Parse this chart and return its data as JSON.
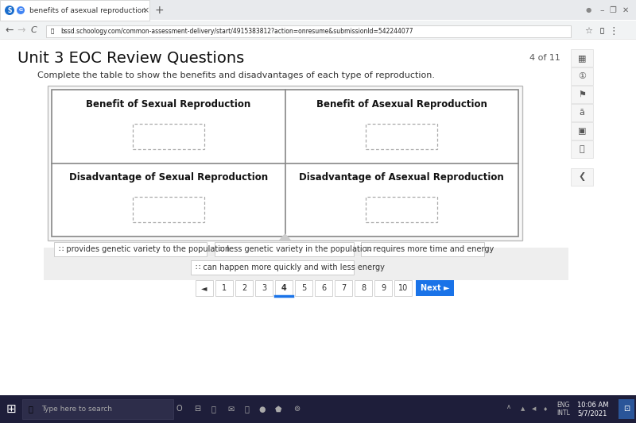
{
  "browser_tab_text": "benefits of asexual reproduction",
  "url": "bssd.schoology.com/common-assessment-delivery/start/4915383812?action=onresume&submissionId=542244077",
  "page_title": "Unit 3 EOC Review Questions",
  "page_num": "4 of 11",
  "instruction": "Complete the table to show the benefits and disadvantages of each type of reproduction.",
  "table_headers": [
    "Benefit of Sexual Reproduction",
    "Benefit of Asexual Reproduction",
    "Disadvantage of Sexual Reproduction",
    "Disadvantage of Asexual Reproduction"
  ],
  "drag_items_row1": [
    "∷ provides genetic variety to the population",
    "∷ less genetic variety in the population",
    "∷ requires more time and energy"
  ],
  "drag_items_row2": [
    "∷ can happen more quickly and with less energy"
  ],
  "pagination": [
    "◄",
    "1",
    "2",
    "3",
    "4",
    "5",
    "6",
    "7",
    "8",
    "9",
    "10"
  ],
  "active_page": "4",
  "next_btn_text": "Next ►",
  "tab_bar_bg": "#e8eaed",
  "active_tab_bg": "#ffffff",
  "browser_toolbar_bg": "#f1f3f4",
  "page_bg": "#ffffff",
  "content_area_bg": "#ffffff",
  "drag_area_bg": "#eeeeee",
  "table_border_color": "#888888",
  "dashed_box_color": "#aaaaaa",
  "drag_item_bg": "#ffffff",
  "drag_item_border": "#bbbbbb",
  "next_btn_color": "#1a73e8",
  "active_page_underline": "#1a73e8",
  "toolbar_right_bg": "#f5f5f5",
  "toolbar_right_border": "#dddddd",
  "taskbar_bg": "#1f1f3a",
  "taskbar_search_bg": "#2d2d4a",
  "taskbar_time": "10:06 AM",
  "taskbar_date": "5/7/2021",
  "title_fontsize": 14,
  "instruction_fontsize": 8,
  "header_fontsize": 8.5,
  "drag_fontsize": 7
}
